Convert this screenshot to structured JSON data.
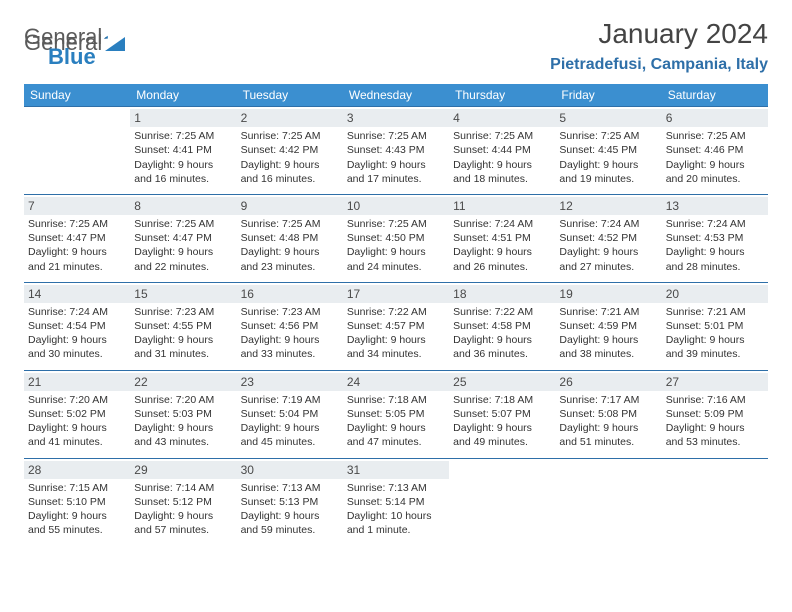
{
  "logo": {
    "general": "General",
    "blue": "Blue"
  },
  "title": "January 2024",
  "location": "Pietradefusi, Campania, Italy",
  "colors": {
    "header_bg": "#3b8fd0",
    "border": "#2e6fa8",
    "daynum_bg": "#e9edf0",
    "location": "#2e6fa8",
    "logo_blue": "#2a7fbf"
  },
  "weekdays": [
    "Sunday",
    "Monday",
    "Tuesday",
    "Wednesday",
    "Thursday",
    "Friday",
    "Saturday"
  ],
  "start_offset": 1,
  "days": [
    {
      "n": 1,
      "sunrise": "7:25 AM",
      "sunset": "4:41 PM",
      "day_h": 9,
      "day_m": 16
    },
    {
      "n": 2,
      "sunrise": "7:25 AM",
      "sunset": "4:42 PM",
      "day_h": 9,
      "day_m": 16
    },
    {
      "n": 3,
      "sunrise": "7:25 AM",
      "sunset": "4:43 PM",
      "day_h": 9,
      "day_m": 17
    },
    {
      "n": 4,
      "sunrise": "7:25 AM",
      "sunset": "4:44 PM",
      "day_h": 9,
      "day_m": 18
    },
    {
      "n": 5,
      "sunrise": "7:25 AM",
      "sunset": "4:45 PM",
      "day_h": 9,
      "day_m": 19
    },
    {
      "n": 6,
      "sunrise": "7:25 AM",
      "sunset": "4:46 PM",
      "day_h": 9,
      "day_m": 20
    },
    {
      "n": 7,
      "sunrise": "7:25 AM",
      "sunset": "4:47 PM",
      "day_h": 9,
      "day_m": 21
    },
    {
      "n": 8,
      "sunrise": "7:25 AM",
      "sunset": "4:47 PM",
      "day_h": 9,
      "day_m": 22
    },
    {
      "n": 9,
      "sunrise": "7:25 AM",
      "sunset": "4:48 PM",
      "day_h": 9,
      "day_m": 23
    },
    {
      "n": 10,
      "sunrise": "7:25 AM",
      "sunset": "4:50 PM",
      "day_h": 9,
      "day_m": 24
    },
    {
      "n": 11,
      "sunrise": "7:24 AM",
      "sunset": "4:51 PM",
      "day_h": 9,
      "day_m": 26
    },
    {
      "n": 12,
      "sunrise": "7:24 AM",
      "sunset": "4:52 PM",
      "day_h": 9,
      "day_m": 27
    },
    {
      "n": 13,
      "sunrise": "7:24 AM",
      "sunset": "4:53 PM",
      "day_h": 9,
      "day_m": 28
    },
    {
      "n": 14,
      "sunrise": "7:24 AM",
      "sunset": "4:54 PM",
      "day_h": 9,
      "day_m": 30
    },
    {
      "n": 15,
      "sunrise": "7:23 AM",
      "sunset": "4:55 PM",
      "day_h": 9,
      "day_m": 31
    },
    {
      "n": 16,
      "sunrise": "7:23 AM",
      "sunset": "4:56 PM",
      "day_h": 9,
      "day_m": 33
    },
    {
      "n": 17,
      "sunrise": "7:22 AM",
      "sunset": "4:57 PM",
      "day_h": 9,
      "day_m": 34
    },
    {
      "n": 18,
      "sunrise": "7:22 AM",
      "sunset": "4:58 PM",
      "day_h": 9,
      "day_m": 36
    },
    {
      "n": 19,
      "sunrise": "7:21 AM",
      "sunset": "4:59 PM",
      "day_h": 9,
      "day_m": 38
    },
    {
      "n": 20,
      "sunrise": "7:21 AM",
      "sunset": "5:01 PM",
      "day_h": 9,
      "day_m": 39
    },
    {
      "n": 21,
      "sunrise": "7:20 AM",
      "sunset": "5:02 PM",
      "day_h": 9,
      "day_m": 41
    },
    {
      "n": 22,
      "sunrise": "7:20 AM",
      "sunset": "5:03 PM",
      "day_h": 9,
      "day_m": 43
    },
    {
      "n": 23,
      "sunrise": "7:19 AM",
      "sunset": "5:04 PM",
      "day_h": 9,
      "day_m": 45
    },
    {
      "n": 24,
      "sunrise": "7:18 AM",
      "sunset": "5:05 PM",
      "day_h": 9,
      "day_m": 47
    },
    {
      "n": 25,
      "sunrise": "7:18 AM",
      "sunset": "5:07 PM",
      "day_h": 9,
      "day_m": 49
    },
    {
      "n": 26,
      "sunrise": "7:17 AM",
      "sunset": "5:08 PM",
      "day_h": 9,
      "day_m": 51
    },
    {
      "n": 27,
      "sunrise": "7:16 AM",
      "sunset": "5:09 PM",
      "day_h": 9,
      "day_m": 53
    },
    {
      "n": 28,
      "sunrise": "7:15 AM",
      "sunset": "5:10 PM",
      "day_h": 9,
      "day_m": 55
    },
    {
      "n": 29,
      "sunrise": "7:14 AM",
      "sunset": "5:12 PM",
      "day_h": 9,
      "day_m": 57
    },
    {
      "n": 30,
      "sunrise": "7:13 AM",
      "sunset": "5:13 PM",
      "day_h": 9,
      "day_m": 59
    },
    {
      "n": 31,
      "sunrise": "7:13 AM",
      "sunset": "5:14 PM",
      "day_h": 10,
      "day_m": 1
    }
  ]
}
